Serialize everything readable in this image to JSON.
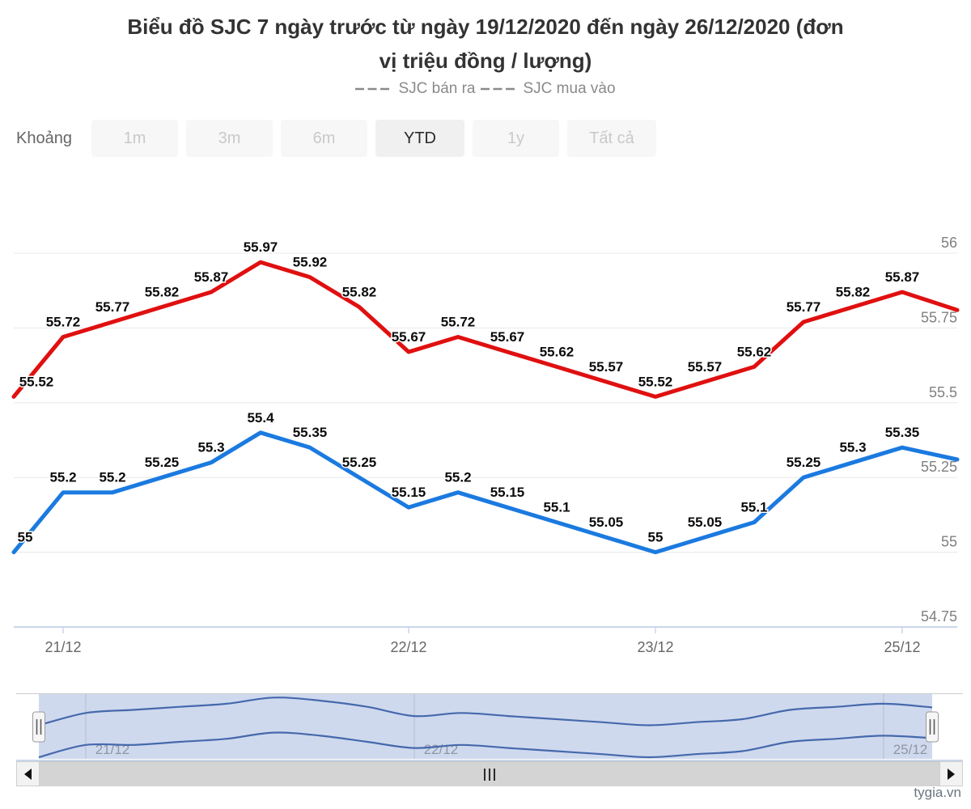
{
  "title_lines": [
    "Biểu đồ SJC 7 ngày trước từ ngày 19/12/2020 đến ngày 26/12/2020 (đơn",
    "vị triệu đồng / lượng)"
  ],
  "legend": {
    "items": [
      "SJC bán ra",
      "SJC mua vào"
    ]
  },
  "range_selector": {
    "label": "Khoảng",
    "buttons": [
      "1m",
      "3m",
      "6m",
      "YTD",
      "1y",
      "Tất cả"
    ],
    "active": "YTD"
  },
  "watermark": "tygia.vn",
  "chart_data": {
    "type": "line",
    "title": "Biểu đồ SJC 7 ngày trước từ ngày 19/12/2020 đến ngày 26/12/2020 (đơn vị triệu đồng / lượng)",
    "unit": "triệu đồng / lượng",
    "grid": "horizontal",
    "legend_position": "top",
    "x_axis": {
      "tick_labels": [
        "21/12",
        "22/12",
        "23/12",
        "25/12"
      ],
      "tick_point_indices": [
        1,
        8,
        13,
        18
      ]
    },
    "y_axis": {
      "side": "right",
      "ticks": [
        56,
        55.75,
        55.5,
        55.25,
        55,
        54.75
      ],
      "ylim": [
        54.75,
        56.1
      ]
    },
    "series": [
      {
        "name": "SJC bán ra",
        "slug": "ban-ra",
        "color": "#e01010",
        "values": [
          55.52,
          55.72,
          55.77,
          55.82,
          55.87,
          55.97,
          55.92,
          55.82,
          55.67,
          55.72,
          55.67,
          55.62,
          55.57,
          55.52,
          55.57,
          55.62,
          55.77,
          55.82,
          55.87
        ],
        "edge_value": 55.81
      },
      {
        "name": "SJC mua vào",
        "slug": "mua-vao",
        "color": "#1b7ae0",
        "values": [
          55,
          55.2,
          55.2,
          55.25,
          55.3,
          55.4,
          55.35,
          55.25,
          55.15,
          55.2,
          55.15,
          55.1,
          55.05,
          55,
          55.05,
          55.1,
          55.25,
          55.3,
          55.35
        ],
        "edge_value": 55.31
      }
    ],
    "navigator": {
      "labels": [
        "21/12",
        "22/12",
        "25/12"
      ],
      "label_point_indices": [
        1,
        8,
        18
      ],
      "line_color": "#4569ac",
      "mask_color": "#cfd9ee",
      "gridline_color": "#b3bccf",
      "label_color": "#8f96a3"
    },
    "axis_colors": {
      "gridline": "#e8e8e8",
      "axis_line": "#ccd6eb",
      "y_label": "#808080",
      "x_label": "#666666"
    }
  }
}
